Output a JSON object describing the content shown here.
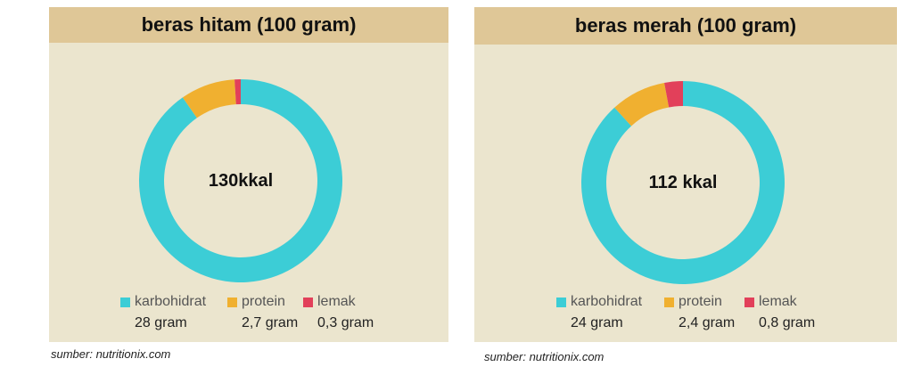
{
  "chart_data": [
    {
      "type": "pie",
      "style": "donut",
      "title": "beras hitam (100 gram)",
      "center_label": "130kkal",
      "categories": [
        "karbohidrat",
        "protein",
        "lemak"
      ],
      "values": [
        28,
        2.7,
        0.3
      ],
      "value_labels": [
        "28 gram",
        "2,7 gram",
        "0,3 gram"
      ],
      "colors": [
        "#3ccdd6",
        "#f0b030",
        "#e2405a"
      ],
      "legend": "bottom",
      "source": "sumber: nutritionix.com"
    },
    {
      "type": "pie",
      "style": "donut",
      "title": "beras merah (100 gram)",
      "center_label": "112 kkal",
      "categories": [
        "karbohidrat",
        "protein",
        "lemak"
      ],
      "values": [
        24,
        2.4,
        0.8
      ],
      "value_labels": [
        "24 gram",
        "2,4 gram",
        "0,8 gram"
      ],
      "colors": [
        "#3ccdd6",
        "#f0b030",
        "#e2405a"
      ],
      "legend": "bottom",
      "source": "sumber: nutritionix.com"
    }
  ]
}
